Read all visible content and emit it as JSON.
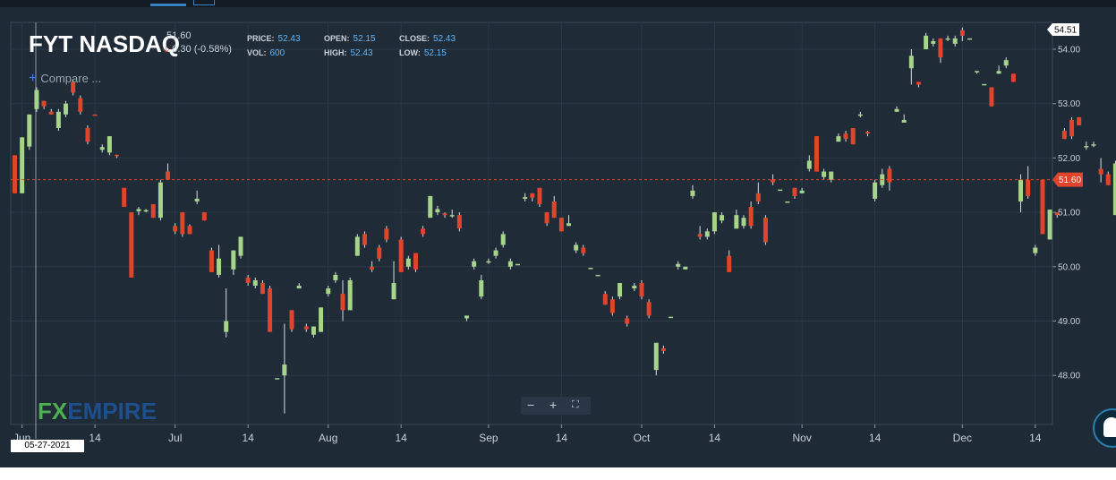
{
  "header": {
    "symbol": "FYT NASDAQ",
    "last": "51.60",
    "change": "0.30 (-0.58%)",
    "price_label": "PRICE:",
    "price_value": "52.43",
    "vol_label": "VOL:",
    "vol_value": "600",
    "open_label": "OPEN:",
    "open_value": "52.15",
    "high_label": "HIGH:",
    "high_value": "52.43",
    "close_label": "CLOSE:",
    "close_value": "52.43",
    "low_label": "LOW:",
    "low_value": "52.15",
    "compare_label": "Compare ..."
  },
  "branding": {
    "logo_fx": "FX",
    "logo_empire": "EMPIRE"
  },
  "crosshair_date": "05-27-2021",
  "colors": {
    "background": "#1e2a36",
    "up": "#a5d48a",
    "down": "#e0442a",
    "grid": "#2b3947",
    "axis_text": "#c9d1d9"
  },
  "chart_data": {
    "type": "candlestick",
    "ylim": [
      47.55,
      54.9
    ],
    "last_price": 51.6,
    "last_price_label": "51.60",
    "top_label": "54.51",
    "y_ticks": [
      {
        "value": 54,
        "label": "54.00"
      },
      {
        "value": 53,
        "label": "53.00"
      },
      {
        "value": 52,
        "label": "52.00"
      },
      {
        "value": 51,
        "label": "51.00"
      },
      {
        "value": 50,
        "label": "50.00"
      },
      {
        "value": 49,
        "label": "49.00"
      },
      {
        "value": 48,
        "label": "48.00"
      }
    ],
    "x_ticks": [
      {
        "index": 1,
        "label": "Jun"
      },
      {
        "index": 11,
        "label": "14"
      },
      {
        "index": 22,
        "label": "Jul"
      },
      {
        "index": 32,
        "label": "14"
      },
      {
        "index": 43,
        "label": "Aug"
      },
      {
        "index": 53,
        "label": "14"
      },
      {
        "index": 65,
        "label": "Sep"
      },
      {
        "index": 75,
        "label": "14"
      },
      {
        "index": 86,
        "label": "Oct"
      },
      {
        "index": 96,
        "label": "14"
      },
      {
        "index": 108,
        "label": "Nov"
      },
      {
        "index": 118,
        "label": "14"
      },
      {
        "index": 130,
        "label": "Dec"
      },
      {
        "index": 140,
        "label": "14"
      }
    ],
    "candles": [
      [
        52.05,
        51.35,
        52.05,
        51.35
      ],
      [
        51.35,
        52.38,
        52.38,
        51.35
      ],
      [
        52.21,
        52.8,
        52.8,
        52.15
      ],
      [
        52.9,
        53.25,
        53.3,
        52.85
      ],
      [
        53.05,
        52.95,
        53.05,
        52.9
      ],
      [
        52.85,
        52.8,
        52.9,
        52.8
      ],
      [
        52.55,
        52.85,
        52.9,
        52.5
      ],
      [
        52.8,
        53.0,
        53.05,
        52.75
      ],
      [
        53.4,
        53.2,
        53.45,
        53.15
      ],
      [
        53.1,
        52.85,
        53.15,
        52.8
      ],
      [
        52.55,
        52.3,
        52.6,
        52.25
      ],
      [
        52.8,
        52.78,
        52.8,
        52.78
      ],
      [
        52.15,
        52.2,
        52.25,
        52.1
      ],
      [
        52.1,
        52.4,
        52.4,
        52.05
      ],
      [
        52.06,
        52.04,
        52.06,
        52.0
      ],
      [
        51.45,
        51.1,
        51.45,
        51.1
      ],
      [
        51.0,
        49.8,
        51.0,
        49.8
      ],
      [
        51.02,
        51.06,
        51.1,
        50.95
      ],
      [
        51.02,
        51.04,
        51.06,
        51.0
      ],
      [
        51.15,
        50.9,
        51.15,
        50.9
      ],
      [
        50.9,
        51.55,
        51.6,
        50.85
      ],
      [
        51.75,
        51.6,
        51.9,
        51.6
      ],
      [
        50.75,
        50.65,
        50.8,
        50.6
      ],
      [
        51.0,
        50.6,
        51.0,
        50.55
      ],
      [
        50.75,
        50.6,
        50.78,
        50.6
      ],
      [
        51.2,
        51.25,
        51.4,
        51.15
      ],
      [
        51.0,
        50.85,
        51.0,
        50.85
      ],
      [
        50.3,
        49.9,
        50.35,
        49.9
      ],
      [
        49.85,
        50.15,
        50.4,
        49.8
      ],
      [
        48.8,
        49.0,
        49.6,
        48.7
      ],
      [
        49.95,
        50.3,
        50.3,
        49.85
      ],
      [
        50.2,
        50.55,
        50.55,
        50.15
      ],
      [
        49.8,
        49.7,
        49.85,
        49.65
      ],
      [
        49.65,
        49.75,
        49.8,
        49.6
      ],
      [
        49.7,
        49.5,
        49.75,
        49.5
      ],
      [
        49.6,
        48.8,
        49.65,
        48.8
      ],
      [
        47.95,
        47.95,
        47.95,
        47.95
      ],
      [
        48.0,
        48.2,
        48.95,
        47.3
      ],
      [
        49.2,
        48.85,
        49.2,
        48.8
      ],
      [
        49.6,
        49.65,
        49.7,
        49.6
      ],
      [
        48.9,
        48.85,
        48.95,
        48.8
      ],
      [
        48.75,
        48.9,
        48.9,
        48.7
      ],
      [
        48.8,
        49.25,
        49.25,
        48.8
      ],
      [
        49.5,
        49.6,
        49.65,
        49.45
      ],
      [
        49.75,
        49.85,
        49.9,
        49.7
      ],
      [
        49.5,
        49.2,
        49.75,
        49.0
      ],
      [
        49.2,
        49.75,
        49.8,
        49.2
      ],
      [
        50.2,
        50.55,
        50.6,
        50.2
      ],
      [
        50.6,
        50.4,
        50.65,
        50.35
      ],
      [
        50.0,
        49.95,
        50.1,
        49.9
      ],
      [
        50.35,
        50.15,
        50.4,
        50.1
      ],
      [
        50.7,
        50.5,
        50.75,
        50.45
      ],
      [
        49.4,
        49.7,
        50.1,
        49.4
      ],
      [
        50.5,
        49.9,
        50.55,
        49.9
      ],
      [
        50.0,
        50.15,
        50.2,
        49.95
      ],
      [
        50.25,
        49.95,
        50.25,
        49.9
      ],
      [
        50.7,
        50.6,
        50.75,
        50.55
      ],
      [
        50.9,
        51.3,
        51.3,
        50.9
      ],
      [
        51.0,
        51.06,
        51.12,
        50.95
      ],
      [
        50.98,
        50.95,
        51.0,
        50.9
      ],
      [
        50.95,
        50.95,
        51.05,
        50.9
      ],
      [
        50.95,
        50.7,
        51.0,
        50.65
      ],
      [
        49.05,
        49.1,
        49.1,
        49.0
      ],
      [
        50.0,
        50.1,
        50.15,
        49.95
      ],
      [
        49.45,
        49.75,
        49.85,
        49.4
      ],
      [
        50.1,
        50.1,
        50.15,
        50.05
      ],
      [
        50.2,
        50.3,
        50.35,
        50.15
      ],
      [
        50.4,
        50.6,
        50.65,
        50.35
      ],
      [
        50.0,
        50.1,
        50.15,
        49.95
      ],
      [
        50.05,
        50.05,
        50.05,
        50.05
      ],
      [
        51.25,
        51.28,
        51.35,
        51.2
      ],
      [
        51.35,
        51.27,
        51.35,
        51.2
      ],
      [
        51.45,
        51.15,
        51.45,
        51.1
      ],
      [
        51.0,
        50.8,
        51.0,
        50.75
      ],
      [
        51.2,
        50.9,
        51.3,
        50.9
      ],
      [
        50.9,
        50.65,
        50.9,
        50.65
      ],
      [
        50.75,
        50.8,
        50.95,
        50.75
      ],
      [
        50.3,
        50.4,
        50.45,
        50.25
      ],
      [
        50.35,
        50.25,
        50.4,
        50.2
      ],
      [
        49.98,
        49.98,
        49.98,
        49.98
      ],
      [
        49.85,
        49.85,
        49.85,
        49.85
      ],
      [
        49.5,
        49.3,
        49.55,
        49.3
      ],
      [
        49.4,
        49.15,
        49.45,
        49.1
      ],
      [
        49.45,
        49.7,
        49.7,
        49.4
      ],
      [
        49.05,
        48.95,
        49.1,
        48.9
      ],
      [
        49.6,
        49.65,
        49.7,
        49.55
      ],
      [
        49.7,
        49.45,
        49.75,
        49.4
      ],
      [
        49.35,
        49.1,
        49.4,
        49.05
      ],
      [
        48.1,
        48.6,
        48.6,
        48.0
      ],
      [
        48.5,
        48.45,
        48.55,
        48.4
      ],
      [
        49.08,
        49.08,
        49.08,
        49.08
      ],
      [
        50.0,
        50.05,
        50.1,
        49.95
      ],
      [
        49.95,
        50.0,
        50.0,
        49.95
      ],
      [
        51.3,
        51.4,
        51.5,
        51.25
      ],
      [
        50.6,
        50.55,
        50.75,
        50.5
      ],
      [
        50.55,
        50.65,
        50.7,
        50.5
      ],
      [
        50.65,
        51.0,
        51.0,
        50.6
      ],
      [
        50.85,
        50.95,
        51.0,
        50.8
      ],
      [
        50.2,
        49.9,
        50.3,
        49.9
      ],
      [
        50.7,
        50.95,
        51.05,
        50.7
      ],
      [
        50.75,
        50.9,
        50.95,
        50.7
      ],
      [
        51.1,
        50.75,
        51.2,
        50.7
      ],
      [
        51.35,
        51.2,
        51.55,
        51.15
      ],
      [
        50.9,
        50.45,
        50.95,
        50.4
      ],
      [
        51.6,
        51.55,
        51.7,
        51.5
      ],
      [
        51.42,
        51.42,
        51.42,
        51.42
      ],
      [
        51.2,
        51.2,
        51.2,
        51.2
      ],
      [
        51.45,
        51.3,
        51.45,
        51.25
      ],
      [
        51.35,
        51.4,
        51.45,
        51.35
      ],
      [
        51.8,
        51.95,
        52.05,
        51.75
      ],
      [
        52.4,
        51.75,
        52.4,
        51.75
      ],
      [
        51.65,
        51.75,
        51.8,
        51.6
      ],
      [
        51.6,
        51.75,
        51.75,
        51.55
      ],
      [
        52.3,
        52.4,
        52.45,
        52.3
      ],
      [
        52.45,
        52.35,
        52.5,
        52.3
      ],
      [
        52.55,
        52.25,
        52.55,
        52.25
      ],
      [
        52.8,
        52.8,
        52.85,
        52.75
      ],
      [
        52.48,
        52.45,
        52.5,
        52.4
      ],
      [
        51.25,
        51.55,
        51.6,
        51.2
      ],
      [
        51.5,
        51.7,
        51.8,
        51.45
      ],
      [
        51.8,
        51.55,
        51.85,
        51.4
      ],
      [
        52.85,
        52.9,
        52.95,
        52.85
      ],
      [
        52.65,
        52.7,
        52.8,
        52.65
      ],
      [
        53.65,
        53.88,
        54.0,
        53.35
      ],
      [
        53.4,
        53.35,
        53.4,
        53.3
      ],
      [
        54.0,
        54.25,
        54.3,
        54.0
      ],
      [
        54.1,
        54.15,
        54.2,
        54.05
      ],
      [
        54.2,
        53.85,
        54.2,
        53.75
      ],
      [
        54.2,
        54.2,
        54.25,
        54.15
      ],
      [
        54.1,
        54.2,
        54.25,
        54.05
      ],
      [
        54.35,
        54.25,
        54.4,
        54.15
      ],
      [
        54.2,
        54.2,
        54.2,
        54.2
      ],
      [
        53.58,
        53.6,
        53.6,
        53.55
      ],
      [
        53.36,
        53.36,
        53.36,
        53.36
      ],
      [
        53.3,
        52.95,
        53.3,
        52.95
      ],
      [
        53.55,
        53.6,
        53.7,
        53.55
      ],
      [
        53.7,
        53.8,
        53.85,
        53.65
      ],
      [
        53.55,
        53.4,
        53.55,
        53.4
      ],
      [
        51.2,
        51.6,
        51.7,
        51.0
      ],
      [
        51.6,
        51.3,
        51.85,
        51.25
      ],
      [
        50.25,
        50.35,
        50.4,
        50.2
      ],
      [
        51.6,
        50.6,
        51.6,
        50.6
      ],
      [
        50.5,
        51.05,
        51.05,
        50.5
      ],
      [
        51.0,
        50.95,
        51.0,
        50.9
      ],
      [
        52.5,
        52.35,
        52.55,
        52.35
      ],
      [
        52.7,
        52.4,
        52.75,
        52.35
      ],
      [
        52.75,
        52.6,
        52.75,
        52.6
      ],
      [
        52.2,
        52.22,
        52.3,
        52.15
      ],
      [
        52.25,
        52.25,
        52.3,
        52.2
      ],
      [
        51.8,
        51.7,
        52.0,
        51.55
      ],
      [
        51.7,
        51.5,
        51.75,
        51.5
      ],
      [
        50.95,
        51.9,
        51.95,
        50.95
      ],
      [
        52.45,
        51.6,
        52.45,
        51.6
      ]
    ]
  }
}
